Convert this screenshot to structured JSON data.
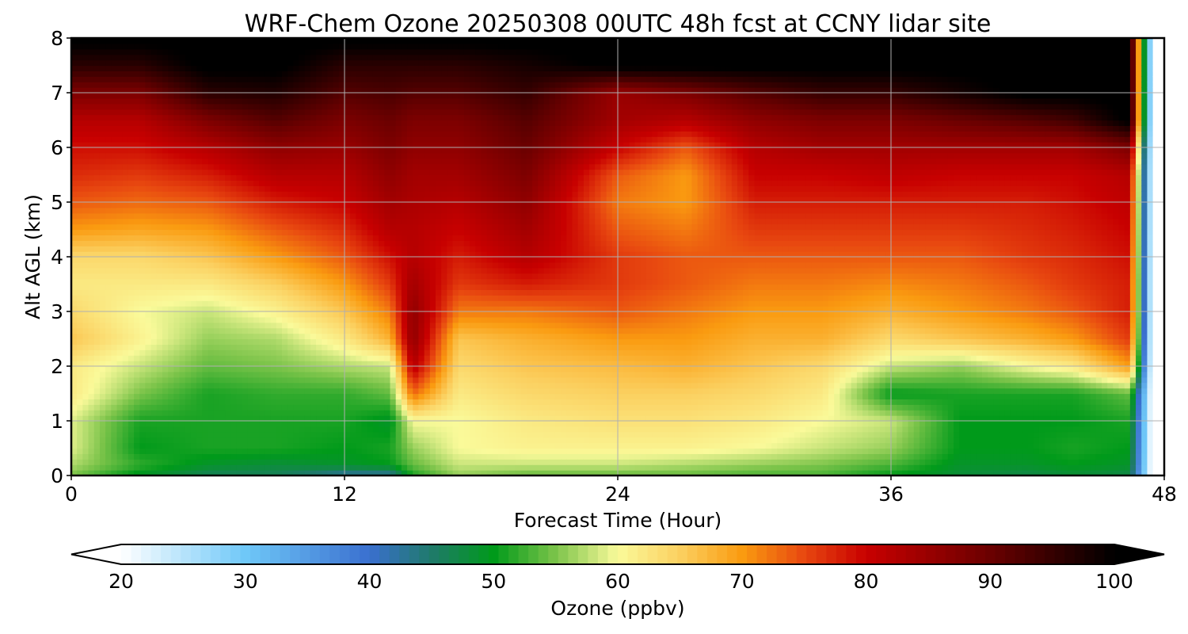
{
  "chart_data": {
    "type": "heatmap",
    "title": "WRF-Chem Ozone  20250308 00UTC 48h fcst at CCNY lidar site",
    "xlabel": "Forecast Time (Hour)",
    "ylabel": "Alt AGL (km)",
    "xlim": [
      0,
      48
    ],
    "ylim": [
      0,
      8
    ],
    "xticks": [
      0,
      12,
      24,
      36,
      48
    ],
    "yticks": [
      0,
      1,
      2,
      3,
      4,
      5,
      6,
      7,
      8
    ],
    "grid": true,
    "colorbar": {
      "label": "Ozone  (ppbv)",
      "min": 20,
      "max": 100,
      "ticks": [
        20,
        30,
        40,
        50,
        60,
        70,
        80,
        90,
        100
      ],
      "extend": "both",
      "orientation": "horizontal",
      "colors": {
        "below": "#ffffff",
        "above": "#000000",
        "stops": [
          {
            "v": 20,
            "c": "#ffffff"
          },
          {
            "v": 30,
            "c": "#6fc8f8"
          },
          {
            "v": 40,
            "c": "#3a6fcf"
          },
          {
            "v": 45,
            "c": "#1f7a6a"
          },
          {
            "v": 50,
            "c": "#009a1a"
          },
          {
            "v": 55,
            "c": "#7cc44a"
          },
          {
            "v": 60,
            "c": "#fafa9a"
          },
          {
            "v": 65,
            "c": "#fbd060"
          },
          {
            "v": 70,
            "c": "#fa9b10"
          },
          {
            "v": 75,
            "c": "#e84810"
          },
          {
            "v": 80,
            "c": "#c80000"
          },
          {
            "v": 90,
            "c": "#6a0000"
          },
          {
            "v": 100,
            "c": "#000000"
          }
        ]
      }
    },
    "altitudes_km": [
      0.0,
      0.2,
      0.5,
      1.0,
      1.5,
      2.0,
      2.5,
      3.0,
      3.5,
      4.0,
      4.5,
      5.0,
      5.5,
      6.0,
      6.5,
      7.0,
      7.5,
      8.0
    ],
    "times_h": [
      0,
      3,
      6,
      9,
      12,
      14,
      15,
      17,
      20,
      24,
      27,
      30,
      33,
      36,
      39,
      42,
      44,
      46.5,
      47.5
    ],
    "ozone_ppbv": [
      [
        55,
        57,
        59,
        59,
        62,
        62,
        66,
        64,
        62,
        64,
        70,
        74,
        77,
        79,
        82,
        88,
        96,
        101
      ],
      [
        49,
        52,
        50,
        51,
        55,
        58,
        61,
        60,
        62,
        64,
        69,
        73,
        76,
        79,
        82,
        88,
        96,
        101
      ],
      [
        46,
        49,
        51,
        51,
        51,
        54,
        56,
        58,
        62,
        66,
        70,
        74,
        78,
        82,
        88,
        96,
        101,
        101
      ],
      [
        46,
        48,
        51,
        51,
        52,
        55,
        57,
        61,
        65,
        70,
        74,
        78,
        82,
        86,
        92,
        97,
        101,
        101
      ],
      [
        42,
        49,
        50,
        51,
        52,
        57,
        62,
        66,
        70,
        74,
        77,
        80,
        82,
        85,
        88,
        92,
        96,
        101
      ],
      [
        42,
        50,
        51,
        49,
        54,
        58,
        68,
        72,
        76,
        79,
        82,
        84,
        86,
        88,
        90,
        93,
        96,
        101
      ],
      [
        51,
        54,
        56,
        60,
        73,
        82,
        86,
        86,
        84,
        82,
        82,
        83,
        84,
        86,
        88,
        92,
        96,
        101
      ],
      [
        56,
        58,
        60,
        60,
        62,
        64,
        66,
        72,
        76,
        78,
        80,
        82,
        84,
        86,
        88,
        92,
        96,
        101
      ],
      [
        54,
        58,
        61,
        62,
        64,
        66,
        68,
        72,
        78,
        82,
        84,
        86,
        88,
        90,
        92,
        95,
        98,
        101
      ],
      [
        54,
        58,
        61,
        63,
        65,
        67,
        70,
        74,
        76,
        76,
        74,
        72,
        74,
        80,
        84,
        85,
        101,
        101
      ],
      [
        54,
        57,
        61,
        63,
        65,
        68,
        70,
        72,
        74,
        74,
        72,
        70,
        70,
        74,
        82,
        88,
        101,
        101
      ],
      [
        53,
        56,
        60,
        62,
        64,
        66,
        68,
        70,
        72,
        74,
        76,
        78,
        80,
        82,
        86,
        92,
        101,
        101
      ],
      [
        53,
        55,
        58,
        60,
        62,
        64,
        68,
        70,
        72,
        74,
        76,
        78,
        80,
        84,
        88,
        95,
        101,
        101
      ],
      [
        50,
        53,
        56,
        58,
        50,
        58,
        64,
        68,
        71,
        74,
        76,
        78,
        81,
        84,
        88,
        95,
        101,
        101
      ],
      [
        48,
        49,
        50,
        50,
        51,
        56,
        66,
        70,
        72,
        74,
        76,
        78,
        80,
        84,
        90,
        98,
        101,
        101
      ],
      [
        47,
        49,
        50,
        50,
        51,
        60,
        68,
        72,
        74,
        76,
        77,
        78,
        80,
        84,
        92,
        101,
        101,
        101
      ],
      [
        48,
        50,
        51,
        50,
        51,
        62,
        70,
        74,
        76,
        77,
        78,
        79,
        80,
        84,
        94,
        101,
        101,
        101
      ],
      [
        47,
        49,
        50,
        51,
        54,
        70,
        76,
        78,
        78,
        79,
        80,
        81,
        82,
        88,
        101,
        101,
        101,
        101
      ],
      [
        18,
        18,
        18,
        18,
        18,
        18,
        18,
        18,
        18,
        18,
        18,
        18,
        18,
        18,
        18,
        18,
        18,
        18
      ]
    ]
  }
}
